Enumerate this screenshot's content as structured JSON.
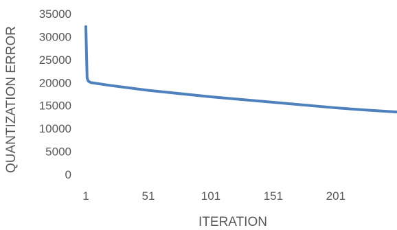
{
  "chart_data": {
    "type": "line",
    "title": "",
    "xlabel": "ITERATION",
    "ylabel": "QUANTIZATION ERROR",
    "x": [
      1,
      2,
      3,
      5,
      10,
      20,
      51,
      101,
      151,
      201,
      226,
      250
    ],
    "series": [
      {
        "values": [
          32200,
          21000,
          20300,
          20000,
          19800,
          19400,
          18300,
          16900,
          15700,
          14500,
          14000,
          13600
        ],
        "color": "#4f81bd"
      }
    ],
    "xticks": [
      "1",
      "51",
      "101",
      "151",
      "201"
    ],
    "xtick_values": [
      1,
      51,
      101,
      151,
      201
    ],
    "yticks": [
      "0",
      "5000",
      "10000",
      "15000",
      "20000",
      "25000",
      "30000",
      "35000"
    ],
    "ytick_values": [
      0,
      5000,
      10000,
      15000,
      20000,
      25000,
      30000,
      35000
    ],
    "xlim": [
      1,
      250
    ],
    "ylim": [
      0,
      35000
    ],
    "grid": false,
    "legend": "none"
  }
}
